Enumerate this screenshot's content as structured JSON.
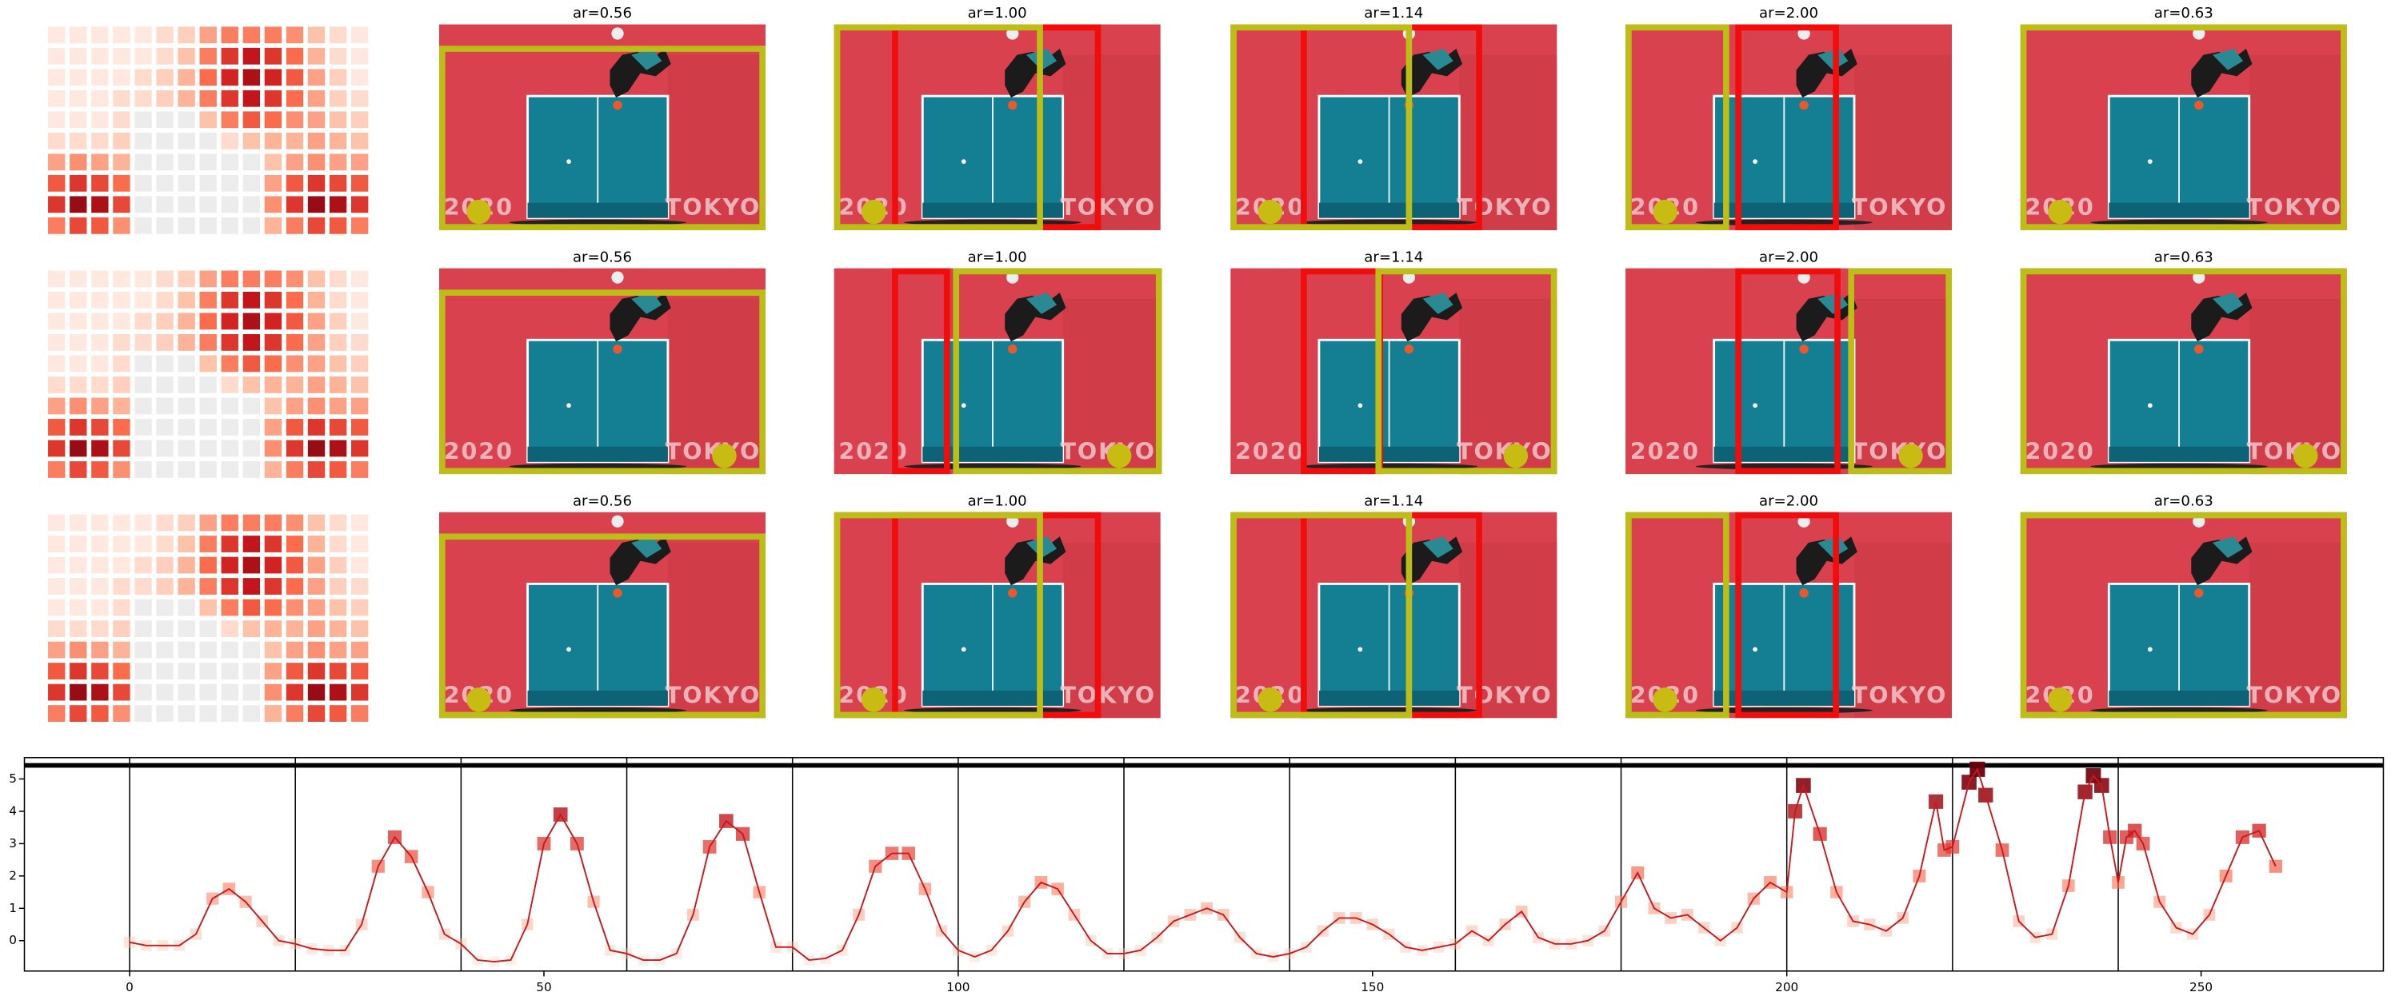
{
  "panels": {
    "titles": [
      [
        "ar=0.56",
        "ar=1.00",
        "ar=1.14",
        "ar=2.00",
        "ar=0.63"
      ],
      [
        "ar=0.56",
        "ar=1.00",
        "ar=1.14",
        "ar=2.00",
        "ar=0.63"
      ],
      [
        "ar=0.56",
        "ar=1.00",
        "ar=1.14",
        "ar=2.00",
        "ar=0.63"
      ]
    ],
    "photo_text": [
      "2020",
      "TOKYO"
    ],
    "heatmap": [
      [
        0.05,
        0.05,
        0.05,
        0.05,
        0.05,
        0.1,
        0.15,
        0.3,
        0.4,
        0.4,
        0.4,
        0.35,
        0.2,
        0.1,
        0.05
      ],
      [
        0.05,
        0.05,
        0.05,
        0.05,
        0.05,
        0.1,
        0.2,
        0.4,
        0.6,
        0.7,
        0.6,
        0.45,
        0.25,
        0.1,
        0.05
      ],
      [
        0.05,
        0.05,
        0.05,
        0.05,
        0.1,
        0.15,
        0.25,
        0.45,
        0.65,
        0.75,
        0.65,
        0.5,
        0.3,
        0.15,
        0.05
      ],
      [
        0.05,
        0.05,
        0.05,
        0.1,
        0.1,
        0.15,
        0.25,
        0.4,
        0.6,
        0.7,
        0.6,
        0.45,
        0.3,
        0.15,
        0.1
      ],
      [
        0.05,
        0.05,
        0.05,
        0.1,
        0,
        0,
        0,
        0.2,
        0.4,
        0.5,
        0.45,
        0.35,
        0.3,
        0.2,
        0.15
      ],
      [
        0.1,
        0.1,
        0.1,
        0.15,
        0,
        0,
        0,
        0,
        0.1,
        0.2,
        0.25,
        0.25,
        0.3,
        0.25,
        0.2
      ],
      [
        0.3,
        0.35,
        0.3,
        0.25,
        0,
        0,
        0,
        0,
        0,
        0,
        0.2,
        0.3,
        0.35,
        0.3,
        0.3
      ],
      [
        0.5,
        0.6,
        0.55,
        0.45,
        0,
        0,
        0,
        0,
        0,
        0,
        0.3,
        0.5,
        0.6,
        0.55,
        0.5
      ],
      [
        0.6,
        0.8,
        0.75,
        0.55,
        0,
        0,
        0,
        0,
        0,
        0,
        0.35,
        0.6,
        0.8,
        0.75,
        0.6
      ],
      [
        0.4,
        0.55,
        0.5,
        0.35,
        0,
        0,
        0,
        0,
        0,
        0,
        0.25,
        0.4,
        0.55,
        0.5,
        0.4
      ]
    ]
  },
  "chart_data": {
    "type": "line",
    "x": [
      0,
      2,
      4,
      6,
      8,
      10,
      12,
      14,
      16,
      18,
      20,
      22,
      24,
      26,
      28,
      30,
      32,
      34,
      36,
      38,
      40,
      42,
      44,
      46,
      48,
      50,
      52,
      54,
      56,
      58,
      60,
      62,
      64,
      66,
      68,
      70,
      72,
      74,
      76,
      78,
      80,
      82,
      84,
      86,
      88,
      90,
      92,
      94,
      96,
      98,
      100,
      102,
      104,
      106,
      108,
      110,
      112,
      114,
      116,
      118,
      120,
      122,
      124,
      126,
      128,
      130,
      132,
      134,
      136,
      138,
      140,
      142,
      144,
      146,
      148,
      150,
      152,
      154,
      156,
      158,
      160,
      162,
      164,
      166,
      168,
      170,
      172,
      174,
      176,
      178,
      180,
      182,
      184,
      186,
      188,
      190,
      192,
      194,
      196,
      198,
      200,
      201,
      202,
      204,
      206,
      208,
      210,
      212,
      214,
      216,
      218,
      219,
      220,
      222,
      223,
      224,
      226,
      228,
      230,
      232,
      234,
      236,
      237,
      238,
      239,
      240,
      241,
      242,
      243,
      245,
      247,
      249,
      251,
      253,
      255,
      257,
      259
    ],
    "series": [
      {
        "color": "#cb181d",
        "values": [
          -0.05,
          -0.15,
          -0.15,
          -0.15,
          0.2,
          1.3,
          1.6,
          1.2,
          0.6,
          0.0,
          -0.1,
          -0.25,
          -0.3,
          -0.3,
          0.5,
          2.3,
          3.2,
          2.6,
          1.5,
          0.2,
          -0.1,
          -0.6,
          -0.65,
          -0.6,
          0.5,
          3.0,
          3.9,
          3.0,
          1.2,
          -0.3,
          -0.4,
          -0.6,
          -0.6,
          -0.4,
          0.8,
          2.9,
          3.7,
          3.3,
          1.5,
          -0.2,
          -0.2,
          -0.6,
          -0.55,
          -0.3,
          0.8,
          2.3,
          2.7,
          2.7,
          1.6,
          0.3,
          -0.3,
          -0.5,
          -0.3,
          0.3,
          1.2,
          1.8,
          1.6,
          0.8,
          0.0,
          -0.4,
          -0.4,
          -0.3,
          0.1,
          0.6,
          0.8,
          1.0,
          0.8,
          0.1,
          -0.4,
          -0.5,
          -0.4,
          -0.2,
          0.3,
          0.7,
          0.7,
          0.5,
          0.2,
          -0.2,
          -0.3,
          -0.2,
          -0.1,
          0.3,
          0.0,
          0.5,
          0.9,
          0.1,
          -0.1,
          -0.1,
          0.0,
          0.3,
          1.2,
          2.1,
          1.0,
          0.7,
          0.8,
          0.4,
          0.0,
          0.4,
          1.3,
          1.8,
          1.5,
          4.0,
          4.8,
          3.3,
          1.5,
          0.6,
          0.5,
          0.3,
          0.7,
          2.0,
          4.3,
          2.8,
          2.9,
          4.9,
          5.3,
          4.5,
          2.8,
          0.6,
          0.1,
          0.2,
          1.7,
          4.6,
          5.1,
          4.8,
          3.2,
          1.8,
          3.2,
          3.4,
          3.0,
          1.2,
          0.4,
          0.2,
          0.8,
          2.0,
          3.2,
          3.4,
          2.3
        ]
      }
    ],
    "xlim": [
      -12.7,
      272
    ],
    "ylim": [
      -0.94,
      5.66
    ],
    "xticks": [
      0,
      50,
      100,
      150,
      200,
      250
    ],
    "yticks": [
      0,
      1,
      2,
      3,
      4,
      5
    ],
    "vlines": [
      0,
      20,
      40,
      60,
      80,
      100,
      120,
      140,
      160,
      180,
      200,
      220,
      240
    ],
    "hline": 5.42
  }
}
